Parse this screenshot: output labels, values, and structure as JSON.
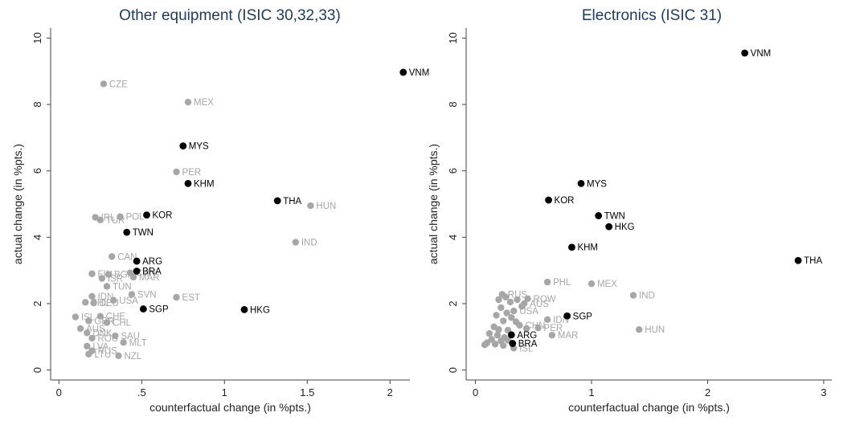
{
  "colors": {
    "highlight": "#000000",
    "other": "#a6a6a6",
    "axis": "#444444",
    "title": "#1f3a5f"
  },
  "chart_data": [
    {
      "type": "scatter",
      "title": "Other equipment (ISIC 30,32,33)",
      "xlabel": "counterfactual change (in %pts.)",
      "ylabel": "actual change (in %pts.)",
      "xlim": [
        -0.05,
        2.12
      ],
      "ylim": [
        -0.3,
        10.3
      ],
      "xticks": [
        0,
        0.5,
        1,
        1.5,
        2
      ],
      "xtick_labels": [
        "0",
        ".5",
        "1",
        "1.5",
        "2"
      ],
      "yticks": [
        0,
        2,
        4,
        6,
        8,
        10
      ],
      "ytick_labels": [
        "0",
        "2",
        "4",
        "6",
        "8",
        "10"
      ],
      "highlighted": [
        {
          "label": "VNM",
          "x": 2.08,
          "y": 8.97
        },
        {
          "label": "MYS",
          "x": 0.75,
          "y": 6.75
        },
        {
          "label": "KHM",
          "x": 0.78,
          "y": 5.62
        },
        {
          "label": "THA",
          "x": 1.32,
          "y": 5.1
        },
        {
          "label": "KOR",
          "x": 0.53,
          "y": 4.67
        },
        {
          "label": "TWN",
          "x": 0.41,
          "y": 4.15
        },
        {
          "label": "ARG",
          "x": 0.47,
          "y": 3.28
        },
        {
          "label": "BRA",
          "x": 0.47,
          "y": 2.98
        },
        {
          "label": "SGP",
          "x": 0.51,
          "y": 1.84
        },
        {
          "label": "HKG",
          "x": 1.12,
          "y": 1.82
        }
      ],
      "others": [
        {
          "label": "CZE",
          "x": 0.27,
          "y": 8.62
        },
        {
          "label": "MEX",
          "x": 0.78,
          "y": 8.07
        },
        {
          "label": "PER",
          "x": 0.71,
          "y": 5.97
        },
        {
          "label": "HUN",
          "x": 1.52,
          "y": 4.95
        },
        {
          "label": "POL",
          "x": 0.37,
          "y": 4.62
        },
        {
          "label": "IRL",
          "x": 0.22,
          "y": 4.6
        },
        {
          "label": "TUR",
          "x": 0.25,
          "y": 4.52
        },
        {
          "label": "IND",
          "x": 1.43,
          "y": 3.85
        },
        {
          "label": "CAN",
          "x": 0.32,
          "y": 3.42
        },
        {
          "label": "FIN",
          "x": 0.2,
          "y": 2.9
        },
        {
          "label": "BGR",
          "x": 0.3,
          "y": 2.88
        },
        {
          "label": "MAR",
          "x": 0.45,
          "y": 2.8
        },
        {
          "label": "CHN",
          "x": 0.43,
          "y": 2.93
        },
        {
          "label": "ISR",
          "x": 0.26,
          "y": 2.76
        },
        {
          "label": "TUN",
          "x": 0.29,
          "y": 2.52
        },
        {
          "label": "SVN",
          "x": 0.44,
          "y": 2.28
        },
        {
          "label": "IDN",
          "x": 0.2,
          "y": 2.22
        },
        {
          "label": "USA",
          "x": 0.33,
          "y": 2.1
        },
        {
          "label": "PHL",
          "x": 0.16,
          "y": 2.04
        },
        {
          "label": "DEU",
          "x": 0.21,
          "y": 2.02
        },
        {
          "label": "EST",
          "x": 0.71,
          "y": 2.19
        },
        {
          "label": "ISL",
          "x": 0.1,
          "y": 1.6
        },
        {
          "label": "CHE",
          "x": 0.25,
          "y": 1.62
        },
        {
          "label": "CHL",
          "x": 0.29,
          "y": 1.43
        },
        {
          "label": "GBR",
          "x": 0.18,
          "y": 1.48
        },
        {
          "label": "AUS",
          "x": 0.13,
          "y": 1.25
        },
        {
          "label": "DNK",
          "x": 0.17,
          "y": 1.12
        },
        {
          "label": "SAU",
          "x": 0.34,
          "y": 1.03
        },
        {
          "label": "ROU",
          "x": 0.2,
          "y": 0.96
        },
        {
          "label": "MLT",
          "x": 0.39,
          "y": 0.83
        },
        {
          "label": "LVA",
          "x": 0.17,
          "y": 0.72
        },
        {
          "label": "RUS",
          "x": 0.2,
          "y": 0.58
        },
        {
          "label": "LTU",
          "x": 0.18,
          "y": 0.48
        },
        {
          "label": "NZL",
          "x": 0.36,
          "y": 0.43
        }
      ]
    },
    {
      "type": "scatter",
      "title": "Electronics (ISIC 31)",
      "xlabel": "counterfactual change (in %pts.)",
      "ylabel": "actual change (in %pts.)",
      "xlim": [
        -0.08,
        3.07
      ],
      "ylim": [
        -0.3,
        10.3
      ],
      "xticks": [
        0,
        1,
        2,
        3
      ],
      "xtick_labels": [
        "0",
        "1",
        "2",
        "3"
      ],
      "yticks": [
        0,
        2,
        4,
        6,
        8,
        10
      ],
      "ytick_labels": [
        "0",
        "2",
        "4",
        "6",
        "8",
        "10"
      ],
      "highlighted": [
        {
          "label": "VNM",
          "x": 2.32,
          "y": 9.55
        },
        {
          "label": "MYS",
          "x": 0.91,
          "y": 5.62
        },
        {
          "label": "KOR",
          "x": 0.63,
          "y": 5.12
        },
        {
          "label": "TWN",
          "x": 1.06,
          "y": 4.65
        },
        {
          "label": "HKG",
          "x": 1.15,
          "y": 4.32
        },
        {
          "label": "KHM",
          "x": 0.83,
          "y": 3.7
        },
        {
          "label": "THA",
          "x": 2.78,
          "y": 3.3
        },
        {
          "label": "SGP",
          "x": 0.79,
          "y": 1.63
        },
        {
          "label": "ARG",
          "x": 0.31,
          "y": 1.06
        },
        {
          "label": "BRA",
          "x": 0.32,
          "y": 0.8
        }
      ],
      "others": [
        {
          "label": "PHL",
          "x": 0.62,
          "y": 2.65
        },
        {
          "label": "MEX",
          "x": 1.0,
          "y": 2.6
        },
        {
          "label": "IND",
          "x": 1.36,
          "y": 2.25
        },
        {
          "label": "HUN",
          "x": 1.41,
          "y": 1.22
        },
        {
          "label": "RUS",
          "x": 0.23,
          "y": 2.28
        },
        {
          "label": "ROW",
          "x": 0.45,
          "y": 2.15
        },
        {
          "label": "AUS",
          "x": 0.42,
          "y": 2.0
        },
        {
          "label": "USA",
          "x": 0.33,
          "y": 1.78
        },
        {
          "label": "IDN",
          "x": 0.62,
          "y": 1.52
        },
        {
          "label": "PER",
          "x": 0.54,
          "y": 1.27
        },
        {
          "label": "MAR",
          "x": 0.66,
          "y": 1.05
        },
        {
          "label": "CHN",
          "x": 0.38,
          "y": 1.35
        },
        {
          "label": "ISL",
          "x": 0.33,
          "y": 0.66
        },
        {
          "label": "",
          "x": 0.2,
          "y": 2.12
        },
        {
          "label": "",
          "x": 0.26,
          "y": 2.2
        },
        {
          "label": "",
          "x": 0.3,
          "y": 2.05
        },
        {
          "label": "",
          "x": 0.36,
          "y": 2.12
        },
        {
          "label": "",
          "x": 0.4,
          "y": 1.92
        },
        {
          "label": "",
          "x": 0.22,
          "y": 1.88
        },
        {
          "label": "",
          "x": 0.27,
          "y": 1.72
        },
        {
          "label": "",
          "x": 0.18,
          "y": 1.65
        },
        {
          "label": "",
          "x": 0.31,
          "y": 1.58
        },
        {
          "label": "",
          "x": 0.24,
          "y": 1.48
        },
        {
          "label": "",
          "x": 0.35,
          "y": 1.45
        },
        {
          "label": "",
          "x": 0.16,
          "y": 1.3
        },
        {
          "label": "",
          "x": 0.2,
          "y": 1.22
        },
        {
          "label": "",
          "x": 0.28,
          "y": 1.2
        },
        {
          "label": "",
          "x": 0.44,
          "y": 1.25
        },
        {
          "label": "",
          "x": 0.12,
          "y": 1.1
        },
        {
          "label": "",
          "x": 0.19,
          "y": 1.05
        },
        {
          "label": "",
          "x": 0.25,
          "y": 0.98
        },
        {
          "label": "",
          "x": 0.14,
          "y": 0.92
        },
        {
          "label": "",
          "x": 0.22,
          "y": 0.88
        },
        {
          "label": "",
          "x": 0.1,
          "y": 0.82
        },
        {
          "label": "",
          "x": 0.17,
          "y": 0.78
        },
        {
          "label": "",
          "x": 0.08,
          "y": 0.76
        },
        {
          "label": "",
          "x": 0.24,
          "y": 0.74
        },
        {
          "label": "",
          "x": 0.28,
          "y": 0.9
        }
      ]
    }
  ]
}
